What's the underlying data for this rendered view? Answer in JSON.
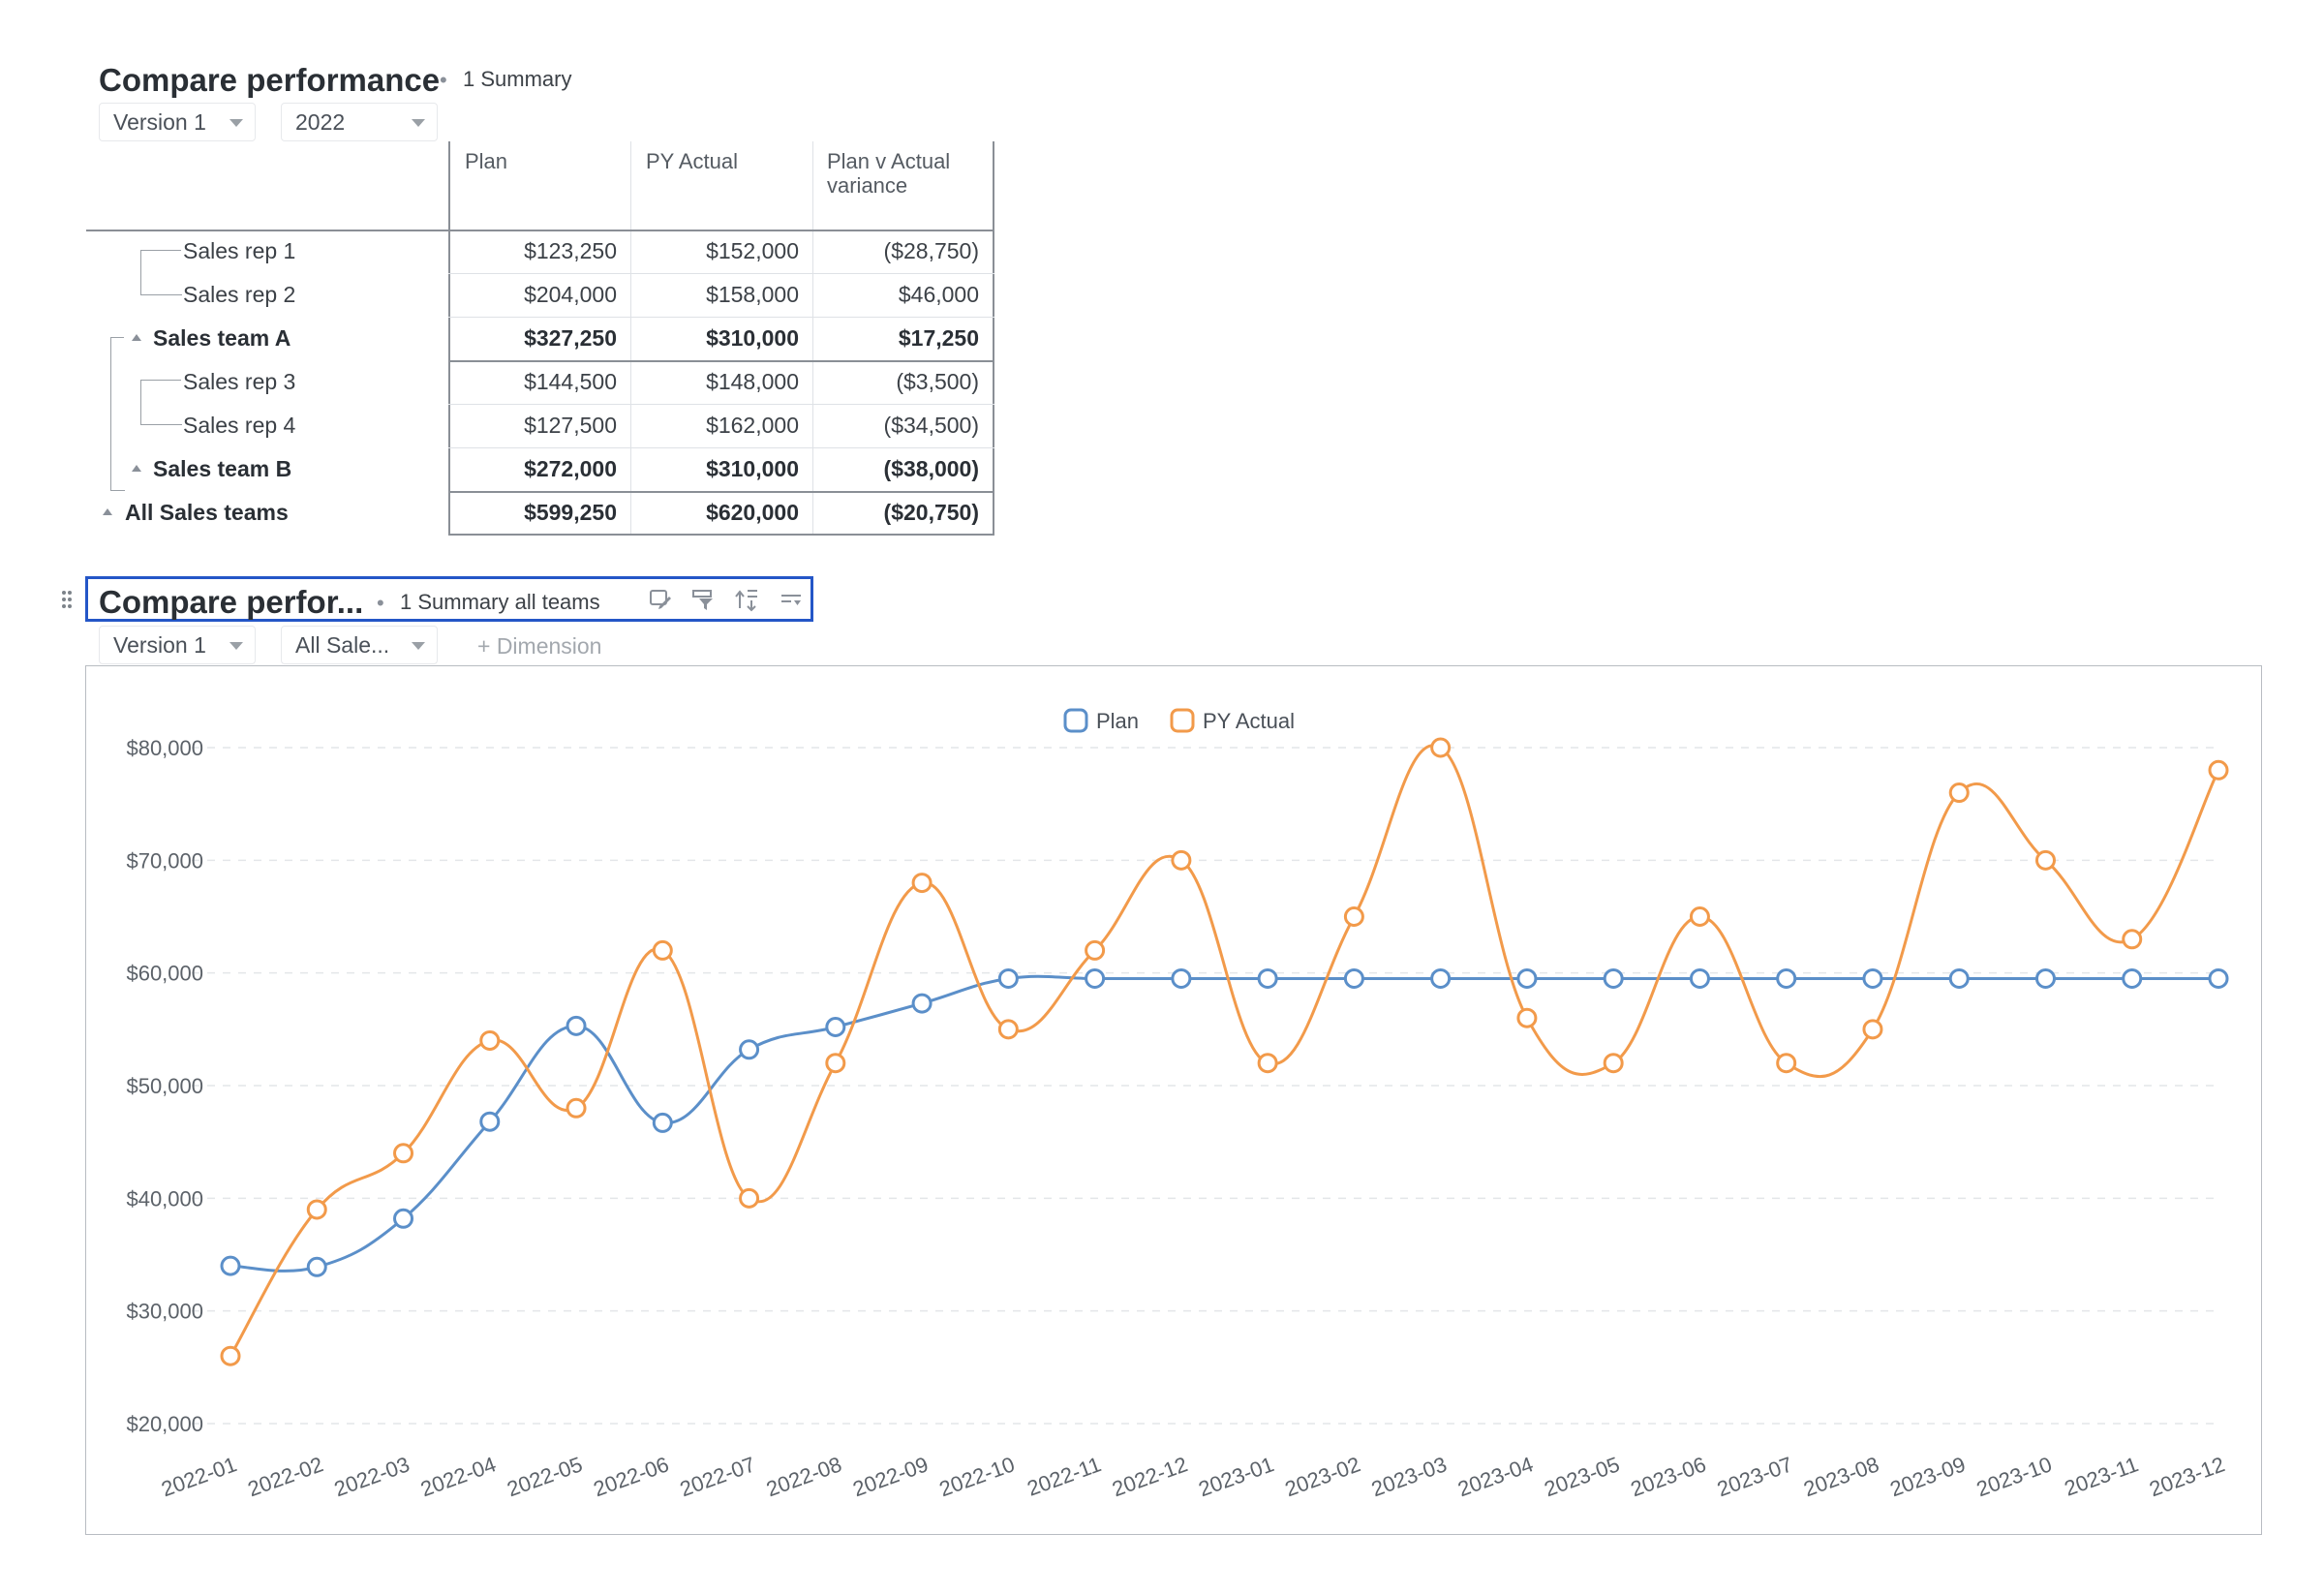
{
  "block1": {
    "title": "Compare performance",
    "separator": "•",
    "subtitle": "1 Summary",
    "selectors": [
      {
        "value": "Version 1"
      },
      {
        "value": "2022"
      }
    ],
    "table": {
      "columns": [
        "Plan",
        "PY Actual",
        "Plan v Actual\nvariance"
      ],
      "rows": [
        {
          "label": "Sales rep 1",
          "level": 2,
          "bold": false,
          "values": [
            "$123,250",
            "$152,000",
            "($28,750)"
          ]
        },
        {
          "label": "Sales rep 2",
          "level": 2,
          "bold": false,
          "values": [
            "$204,000",
            "$158,000",
            "$46,000"
          ]
        },
        {
          "label": "Sales team A",
          "level": 1,
          "bold": true,
          "values": [
            "$327,250",
            "$310,000",
            "$17,250"
          ]
        },
        {
          "label": "Sales rep 3",
          "level": 2,
          "bold": false,
          "values": [
            "$144,500",
            "$148,000",
            "($3,500)"
          ]
        },
        {
          "label": "Sales rep 4",
          "level": 2,
          "bold": false,
          "values": [
            "$127,500",
            "$162,000",
            "($34,500)"
          ]
        },
        {
          "label": "Sales team B",
          "level": 1,
          "bold": true,
          "values": [
            "$272,000",
            "$310,000",
            "($38,000)"
          ]
        },
        {
          "label": "All Sales teams",
          "level": 0,
          "bold": true,
          "values": [
            "$599,250",
            "$620,000",
            "($20,750)"
          ]
        }
      ]
    }
  },
  "block2": {
    "title": "Compare perfor...",
    "separator": "•",
    "subtitle": "1 Summary all teams",
    "toolbar_icons": [
      "edit-view-icon",
      "filter-icon",
      "pivot-icon",
      "more-options-icon"
    ],
    "selectors": [
      {
        "value": "Version 1"
      },
      {
        "value": "All Sale..."
      }
    ],
    "add_dimension": "+ Dimension"
  },
  "chart_data": {
    "type": "line",
    "smooth": true,
    "legend_position": "top-center",
    "grid": "horizontal-dashed",
    "x": [
      "2022-01",
      "2022-02",
      "2022-03",
      "2022-04",
      "2022-05",
      "2022-06",
      "2022-07",
      "2022-08",
      "2022-09",
      "2022-10",
      "2022-11",
      "2022-12",
      "2023-01",
      "2023-02",
      "2023-03",
      "2023-04",
      "2023-05",
      "2023-06",
      "2023-07",
      "2023-08",
      "2023-09",
      "2023-10",
      "2023-11",
      "2023-12"
    ],
    "ylim": [
      20000,
      80000
    ],
    "yticks": [
      20000,
      30000,
      40000,
      50000,
      60000,
      70000,
      80000
    ],
    "ytick_labels": [
      "$20,000",
      "$30,000",
      "$40,000",
      "$50,000",
      "$60,000",
      "$70,000",
      "$80,000"
    ],
    "series": [
      {
        "name": "Plan",
        "color": "#5b8fc9",
        "values": [
          34000,
          33900,
          38200,
          46800,
          55300,
          46700,
          53200,
          55200,
          57300,
          59500,
          59500,
          59500,
          59500,
          59500,
          59500,
          59500,
          59500,
          59500,
          59500,
          59500,
          59500,
          59500,
          59500,
          59500
        ]
      },
      {
        "name": "PY Actual",
        "color": "#f29a4a",
        "values": [
          26000,
          39000,
          44000,
          54000,
          48000,
          62000,
          40000,
          52000,
          68000,
          55000,
          62000,
          70000,
          52000,
          65000,
          80000,
          56000,
          52000,
          65000,
          52000,
          55000,
          76000,
          70000,
          63000,
          78000
        ]
      }
    ]
  }
}
